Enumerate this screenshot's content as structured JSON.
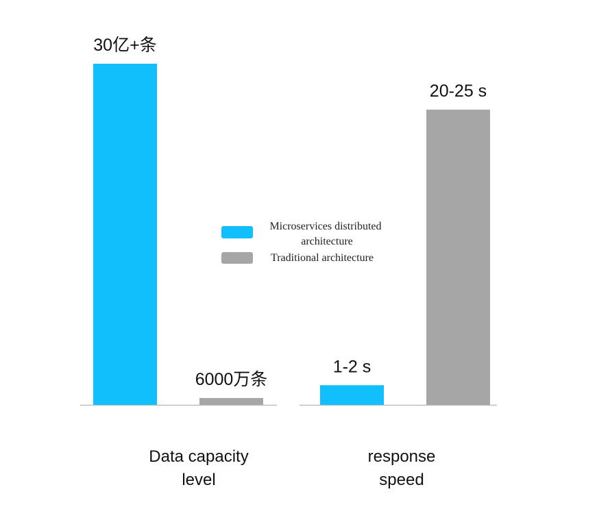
{
  "chart_data": {
    "type": "bar",
    "panels": [
      {
        "title_lines": [
          "Data capacity",
          "level"
        ],
        "bars": [
          {
            "series": "Microservices distributed architecture",
            "value": 3000000000,
            "label": "30亿+条"
          },
          {
            "series": "Traditional architecture",
            "value": 60000000,
            "label": "6000万条"
          }
        ],
        "ylim": [
          0,
          3000000000
        ]
      },
      {
        "title_lines": [
          "response",
          "speed"
        ],
        "bars": [
          {
            "series": "Microservices distributed architecture",
            "value": 1.5,
            "label": "1-2 s"
          },
          {
            "series": "Traditional architecture",
            "value": 22.5,
            "label": "20-25 s"
          }
        ],
        "ylim": [
          0,
          26
        ]
      }
    ],
    "legend": {
      "position": "center",
      "entries": [
        {
          "lines": [
            "Microservices distributed",
            "architecture"
          ],
          "color": "#12bffd"
        },
        {
          "lines": [
            "Traditional architecture"
          ],
          "color": "#a6a6a6"
        }
      ]
    },
    "grid": false
  },
  "colors": {
    "Microservices distributed architecture": "#12bffd",
    "Traditional architecture": "#a6a6a6",
    "axis": "#bfbfbf"
  }
}
